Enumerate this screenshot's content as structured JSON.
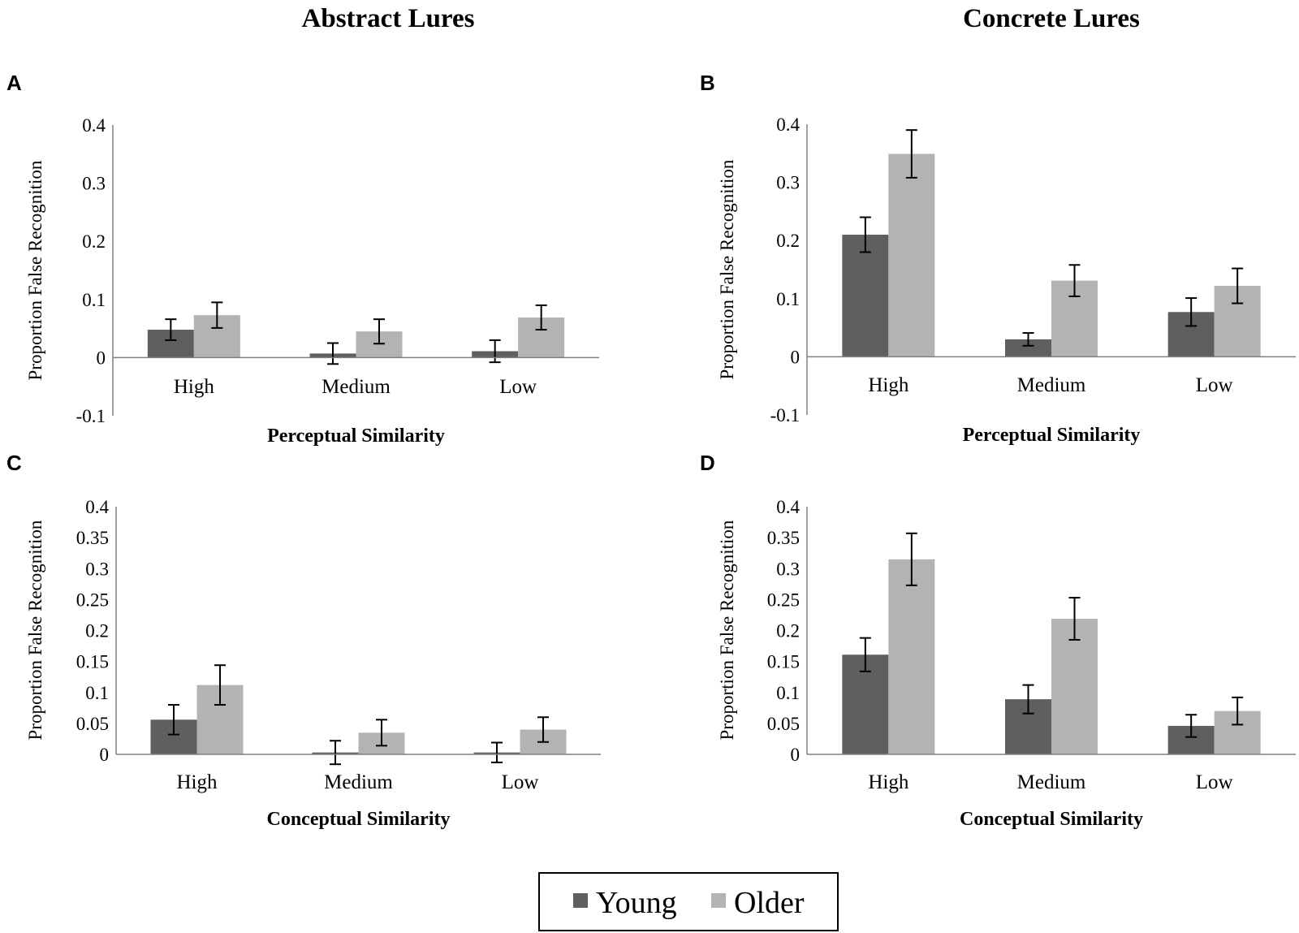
{
  "column_titles": [
    "Abstract Lures",
    "Concrete Lures"
  ],
  "legend": {
    "items": [
      {
        "name": "Young",
        "color": "#5f5f5f"
      },
      {
        "name": "Older",
        "color": "#b3b3b3"
      }
    ]
  },
  "chart_data": [
    {
      "panel": "A",
      "type": "bar",
      "column": "Abstract Lures",
      "title": "",
      "xlabel": "Perceptual Similarity",
      "ylabel": "Proportion False Recognition",
      "ylim": [
        -0.1,
        0.4
      ],
      "yticks": [
        -0.1,
        0,
        0.1,
        0.2,
        0.3,
        0.4
      ],
      "ytick_labels": [
        "-0.1",
        "0",
        "0.1",
        "0.2",
        "0.3",
        "0.4"
      ],
      "categories": [
        "High",
        "Medium",
        "Low"
      ],
      "series": [
        {
          "name": "Young",
          "values": [
            0.048,
            0.007,
            0.011
          ],
          "errors": [
            0.018,
            0.018,
            0.019
          ]
        },
        {
          "name": "Older",
          "values": [
            0.073,
            0.045,
            0.069
          ],
          "errors": [
            0.022,
            0.021,
            0.021
          ]
        }
      ]
    },
    {
      "panel": "B",
      "type": "bar",
      "column": "Concrete Lures",
      "title": "",
      "xlabel": "Perceptual Similarity",
      "ylabel": "Proportion False Recognition",
      "ylim": [
        -0.1,
        0.4
      ],
      "yticks": [
        -0.1,
        0,
        0.1,
        0.2,
        0.3,
        0.4
      ],
      "ytick_labels": [
        "-0.1",
        "0",
        "0.1",
        "0.2",
        "0.3",
        "0.4"
      ],
      "categories": [
        "High",
        "Medium",
        "Low"
      ],
      "series": [
        {
          "name": "Young",
          "values": [
            0.21,
            0.03,
            0.077
          ],
          "errors": [
            0.03,
            0.011,
            0.024
          ]
        },
        {
          "name": "Older",
          "values": [
            0.349,
            0.131,
            0.122
          ],
          "errors": [
            0.041,
            0.027,
            0.03
          ]
        }
      ]
    },
    {
      "panel": "C",
      "type": "bar",
      "column": "Abstract Lures",
      "title": "",
      "xlabel": "Conceptual Similarity",
      "ylabel": "Proportion False Recognition",
      "ylim": [
        0,
        0.4
      ],
      "yticks": [
        0,
        0.05,
        0.1,
        0.15,
        0.2,
        0.25,
        0.3,
        0.35,
        0.4
      ],
      "ytick_labels": [
        "0",
        "0.05",
        "0.1",
        "0.15",
        "0.2",
        "0.25",
        "0.3",
        "0.35",
        "0.4"
      ],
      "categories": [
        "High",
        "Medium",
        "Low"
      ],
      "series": [
        {
          "name": "Young",
          "values": [
            0.056,
            0.003,
            0.003
          ],
          "errors": [
            0.024,
            0.019,
            0.016
          ]
        },
        {
          "name": "Older",
          "values": [
            0.112,
            0.035,
            0.04
          ],
          "errors": [
            0.032,
            0.021,
            0.02
          ]
        }
      ]
    },
    {
      "panel": "D",
      "type": "bar",
      "column": "Concrete Lures",
      "title": "",
      "xlabel": "Conceptual Similarity",
      "ylabel": "Proportion False Recognition",
      "ylim": [
        0,
        0.4
      ],
      "yticks": [
        0,
        0.05,
        0.1,
        0.15,
        0.2,
        0.25,
        0.3,
        0.35,
        0.4
      ],
      "ytick_labels": [
        "0",
        "0.05",
        "0.1",
        "0.15",
        "0.2",
        "0.25",
        "0.3",
        "0.35",
        "0.4"
      ],
      "categories": [
        "High",
        "Medium",
        "Low"
      ],
      "series": [
        {
          "name": "Young",
          "values": [
            0.161,
            0.089,
            0.046
          ],
          "errors": [
            0.027,
            0.023,
            0.018
          ]
        },
        {
          "name": "Older",
          "values": [
            0.315,
            0.219,
            0.07
          ],
          "errors": [
            0.042,
            0.034,
            0.022
          ]
        }
      ]
    }
  ]
}
